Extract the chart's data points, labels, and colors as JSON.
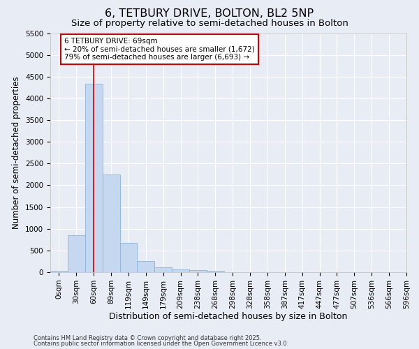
{
  "title": "6, TETBURY DRIVE, BOLTON, BL2 5NP",
  "subtitle": "Size of property relative to semi-detached houses in Bolton",
  "xlabel": "Distribution of semi-detached houses by size in Bolton",
  "ylabel": "Number of semi-detached properties",
  "footnote1": "Contains HM Land Registry data © Crown copyright and database right 2025.",
  "footnote2": "Contains public sector information licensed under the Open Government Licence v3.0.",
  "bar_values": [
    30,
    850,
    4330,
    2250,
    680,
    250,
    115,
    65,
    50,
    40,
    0,
    0,
    0,
    0,
    0,
    0,
    0,
    0,
    0,
    0
  ],
  "bin_labels": [
    "0sqm",
    "30sqm",
    "60sqm",
    "89sqm",
    "119sqm",
    "149sqm",
    "179sqm",
    "209sqm",
    "238sqm",
    "268sqm",
    "298sqm",
    "328sqm",
    "358sqm",
    "387sqm",
    "417sqm",
    "447sqm",
    "477sqm",
    "507sqm",
    "536sqm",
    "566sqm",
    "596sqm"
  ],
  "bar_color": "#c5d8f0",
  "bar_edge_color": "#8ab4d8",
  "background_color": "#e8edf5",
  "grid_color": "#ffffff",
  "vline_x": 2.0,
  "vline_color": "#cc0000",
  "vline_label": "6 TETBURY DRIVE: 69sqm",
  "annotation_smaller": "← 20% of semi-detached houses are smaller (1,672)",
  "annotation_larger": "79% of semi-detached houses are larger (6,693) →",
  "annotation_box_color": "#ffffff",
  "annotation_box_edgecolor": "#cc0000",
  "ylim": [
    0,
    5500
  ],
  "yticks": [
    0,
    500,
    1000,
    1500,
    2000,
    2500,
    3000,
    3500,
    4000,
    4500,
    5000,
    5500
  ],
  "title_fontsize": 11.5,
  "subtitle_fontsize": 9.5,
  "xlabel_fontsize": 9,
  "ylabel_fontsize": 8.5,
  "tick_fontsize": 7.5,
  "annotation_fontsize": 7.5,
  "footnote_fontsize": 6.0
}
